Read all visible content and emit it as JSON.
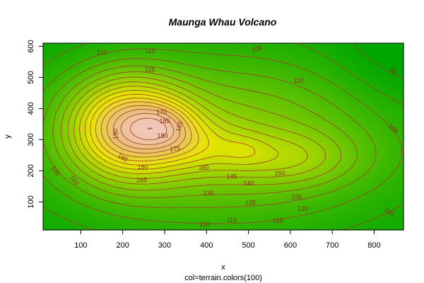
{
  "chart_data": {
    "type": "heatmap",
    "title": "Maunga Whau Volcano",
    "xlabel": "x",
    "sub": "col=terrain.colors(100)",
    "ylabel": "y",
    "xlim": [
      10,
      870
    ],
    "ylim": [
      10,
      610
    ],
    "x_ticks": [
      100,
      200,
      300,
      400,
      500,
      600,
      700,
      800
    ],
    "y_ticks": [
      100,
      200,
      300,
      400,
      500,
      600
    ],
    "z_range": [
      94,
      195
    ],
    "contour_labels": [
      {
        "text": "110",
        "x": 150,
        "y": 580,
        "rot": 0
      },
      {
        "text": "115",
        "x": 265,
        "y": 585,
        "rot": 0
      },
      {
        "text": "105",
        "x": 520,
        "y": 592,
        "rot": -10
      },
      {
        "text": "95",
        "x": 845,
        "y": 520,
        "rot": 40
      },
      {
        "text": "110",
        "x": 620,
        "y": 490,
        "rot": 0
      },
      {
        "text": "125",
        "x": 265,
        "y": 525,
        "rot": 0
      },
      {
        "text": "170",
        "x": 293,
        "y": 388,
        "rot": 0
      },
      {
        "text": "185",
        "x": 300,
        "y": 360,
        "rot": 0
      },
      {
        "text": "165",
        "x": 335,
        "y": 343,
        "rot": -75
      },
      {
        "text": "190",
        "x": 183,
        "y": 318,
        "rot": -90
      },
      {
        "text": "180",
        "x": 295,
        "y": 312,
        "rot": 0
      },
      {
        "text": "175",
        "x": 325,
        "y": 270,
        "rot": 0
      },
      {
        "text": "185",
        "x": 200,
        "y": 242,
        "rot": 30
      },
      {
        "text": "180",
        "x": 248,
        "y": 212,
        "rot": 0
      },
      {
        "text": "160",
        "x": 393,
        "y": 210,
        "rot": 0
      },
      {
        "text": "145",
        "x": 460,
        "y": 182,
        "rot": 0
      },
      {
        "text": "150",
        "x": 575,
        "y": 192,
        "rot": 0
      },
      {
        "text": "165",
        "x": 245,
        "y": 170,
        "rot": 0
      },
      {
        "text": "140",
        "x": 500,
        "y": 160,
        "rot": 0
      },
      {
        "text": "130",
        "x": 405,
        "y": 128,
        "rot": 0
      },
      {
        "text": "135",
        "x": 615,
        "y": 116,
        "rot": 0
      },
      {
        "text": "125",
        "x": 505,
        "y": 98,
        "rot": 0
      },
      {
        "text": "120",
        "x": 630,
        "y": 78,
        "rot": 0
      },
      {
        "text": "105",
        "x": 40,
        "y": 200,
        "rot": 55
      },
      {
        "text": "110",
        "x": 85,
        "y": 170,
        "rot": 55
      },
      {
        "text": "100",
        "x": 845,
        "y": 335,
        "rot": 40
      },
      {
        "text": "115",
        "x": 460,
        "y": 42,
        "rot": 0
      },
      {
        "text": "115",
        "x": 570,
        "y": 40,
        "rot": 0
      },
      {
        "text": "110",
        "x": 395,
        "y": 28,
        "rot": 0
      },
      {
        "text": "100",
        "x": 835,
        "y": 68,
        "rot": 40
      }
    ]
  }
}
